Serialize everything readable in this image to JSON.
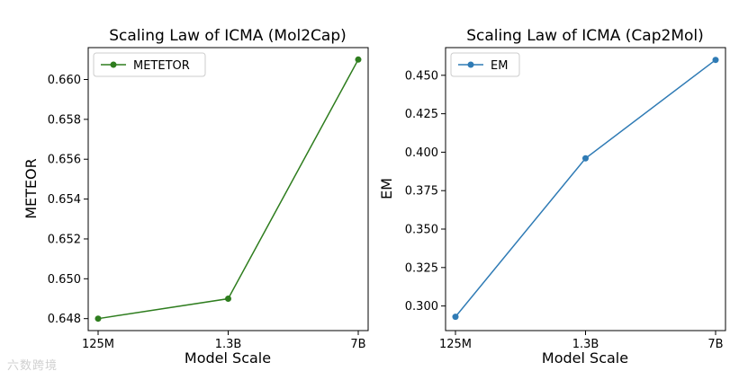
{
  "chart_data": [
    {
      "type": "line",
      "title": "Scaling Law of ICMA (Mol2Cap)",
      "xlabel": "Model Scale",
      "ylabel": "METEOR",
      "categories": [
        "125M",
        "1.3B",
        "7B"
      ],
      "series": [
        {
          "name": "METETOR",
          "values": [
            0.648,
            0.649,
            0.661
          ],
          "color": "#2e7d1e"
        }
      ],
      "ylim": [
        0.6474,
        0.6616
      ],
      "yticks": [
        0.648,
        0.65,
        0.652,
        0.654,
        0.656,
        0.658,
        0.66
      ],
      "ytick_labels": [
        "0.648",
        "0.650",
        "0.652",
        "0.654",
        "0.656",
        "0.658",
        "0.660"
      ],
      "legend": "top-left",
      "grid": false
    },
    {
      "type": "line",
      "title": "Scaling Law of ICMA (Cap2Mol)",
      "xlabel": "Model Scale",
      "ylabel": "EM",
      "categories": [
        "125M",
        "1.3B",
        "7B"
      ],
      "series": [
        {
          "name": "EM",
          "values": [
            0.293,
            0.396,
            0.46
          ],
          "color": "#2f7bb5"
        }
      ],
      "ylim": [
        0.284,
        0.468
      ],
      "yticks": [
        0.3,
        0.325,
        0.35,
        0.375,
        0.4,
        0.425,
        0.45
      ],
      "ytick_labels": [
        "0.300",
        "0.325",
        "0.350",
        "0.375",
        "0.400",
        "0.425",
        "0.450"
      ],
      "legend": "top-left",
      "grid": false
    }
  ],
  "watermark": "六数跨境"
}
